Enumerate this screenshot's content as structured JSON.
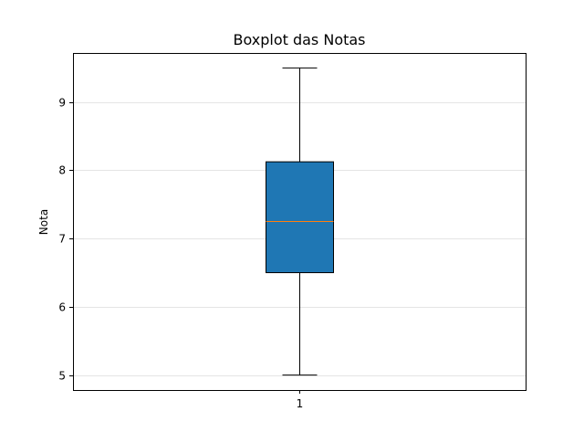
{
  "chart_data": {
    "type": "box",
    "title": "Boxplot das Notas",
    "xlabel": "",
    "ylabel": "Nota",
    "categories": [
      "1"
    ],
    "boxes": [
      {
        "category": "1",
        "whisker_low": 5.0,
        "q1": 6.5,
        "median": 7.25,
        "q3": 8.125,
        "whisker_high": 9.5
      }
    ],
    "ylim": [
      4.78,
      9.72
    ],
    "yticks": [
      5,
      6,
      7,
      8,
      9
    ],
    "grid": "y",
    "colors": {
      "box_fill": "#1f77b4",
      "median_line": "#ff7f0e",
      "grid": "#dddddd"
    }
  }
}
